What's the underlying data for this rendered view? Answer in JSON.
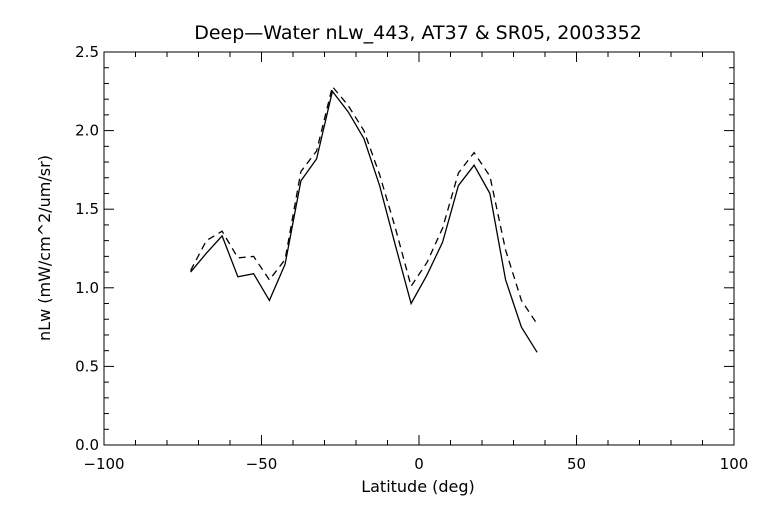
{
  "chart_data": {
    "type": "line",
    "title": "Deep—Water nLw_443, AT37 & SR05, 2003352",
    "xlabel": "Latitude (deg)",
    "ylabel": "nLw (mW/cm^2/um/sr)",
    "xlim": [
      -100,
      100
    ],
    "ylim": [
      0.0,
      2.5
    ],
    "xticks": [
      -100,
      -50,
      0,
      50,
      100
    ],
    "xtick_labels": [
      "−100",
      "−50",
      "0",
      "50",
      "100"
    ],
    "yticks": [
      0.0,
      0.5,
      1.0,
      1.5,
      2.0,
      2.5
    ],
    "ytick_labels": [
      "0.0",
      "0.5",
      "1.0",
      "1.5",
      "2.0",
      "2.5"
    ],
    "grid": false,
    "legend": "none",
    "series": [
      {
        "style": "solid",
        "color": "#000000",
        "x": [
          -72.5,
          -67.5,
          -62.5,
          -57.5,
          -52.5,
          -47.5,
          -42.5,
          -37.5,
          -32.5,
          -27.5,
          -22.5,
          -17.5,
          -12.5,
          -7.5,
          -2.5,
          2.5,
          7.5,
          12.5,
          17.5,
          22.5,
          27.5,
          32.5,
          37.5
        ],
        "y": [
          1.1,
          1.22,
          1.33,
          1.07,
          1.09,
          0.92,
          1.15,
          1.68,
          1.82,
          2.25,
          2.12,
          1.95,
          1.65,
          1.27,
          0.9,
          1.08,
          1.29,
          1.65,
          1.78,
          1.6,
          1.05,
          0.75,
          0.59
        ]
      },
      {
        "style": "dashed",
        "color": "#000000",
        "x": [
          -72.5,
          -67.5,
          -62.5,
          -57.5,
          -52.5,
          -47.5,
          -42.5,
          -37.5,
          -32.5,
          -27.5,
          -22.5,
          -17.5,
          -12.5,
          -7.5,
          -2.5,
          2.5,
          7.5,
          12.5,
          17.5,
          22.5,
          27.5,
          32.5,
          37.5
        ],
        "y": [
          1.11,
          1.3,
          1.36,
          1.19,
          1.2,
          1.05,
          1.18,
          1.74,
          1.87,
          2.28,
          2.16,
          2.0,
          1.72,
          1.38,
          1.01,
          1.16,
          1.38,
          1.73,
          1.86,
          1.71,
          1.24,
          0.92,
          0.77
        ]
      }
    ]
  }
}
